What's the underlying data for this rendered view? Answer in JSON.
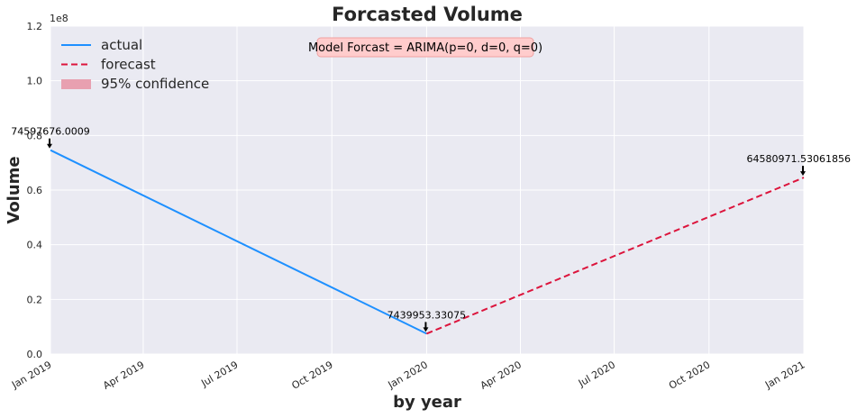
{
  "chart_data": {
    "type": "line",
    "title": "Forcasted Volume",
    "xlabel": "by year",
    "ylabel": "Volume",
    "y_offset_text": "1e8",
    "ylim": [
      0,
      1.2
    ],
    "xlim": [
      "2019-01-01",
      "2021-01-01"
    ],
    "x_ticks": [
      {
        "label": "Jan 2019",
        "date": "2019-01-01"
      },
      {
        "label": "Apr 2019",
        "date": "2019-04-01"
      },
      {
        "label": "Jul 2019",
        "date": "2019-07-01"
      },
      {
        "label": "Oct 2019",
        "date": "2019-10-01"
      },
      {
        "label": "Jan 2020",
        "date": "2020-01-01"
      },
      {
        "label": "Apr 2020",
        "date": "2020-04-01"
      },
      {
        "label": "Jul 2020",
        "date": "2020-07-01"
      },
      {
        "label": "Oct 2020",
        "date": "2020-10-01"
      },
      {
        "label": "Jan 2021",
        "date": "2021-01-01"
      }
    ],
    "y_ticks": [
      {
        "label": "0.0",
        "value": 0.0
      },
      {
        "label": "0.2",
        "value": 0.2
      },
      {
        "label": "0.4",
        "value": 0.4
      },
      {
        "label": "0.6",
        "value": 0.6
      },
      {
        "label": "0.8",
        "value": 0.8
      },
      {
        "label": "1.0",
        "value": 1.0
      },
      {
        "label": "1.2",
        "value": 1.2
      }
    ],
    "grid": true,
    "legend_position": "top-left",
    "series": [
      {
        "name": "actual",
        "style": "solid",
        "color": "#1e90ff",
        "points": [
          {
            "x": "2019-01-01",
            "y": 0.745976760009
          },
          {
            "x": "2020-01-01",
            "y": 0.0743995333075
          }
        ]
      },
      {
        "name": "forecast",
        "style": "dashed",
        "color": "#dc143c",
        "points": [
          {
            "x": "2020-01-01",
            "y": 0.0743995333075
          },
          {
            "x": "2021-01-01",
            "y": 0.6458097153061856
          }
        ]
      }
    ],
    "legend": [
      {
        "label": "actual",
        "kind": "solid",
        "color": "#1e90ff"
      },
      {
        "label": "forecast",
        "kind": "dashed",
        "color": "#dc143c"
      },
      {
        "label": "95% confidence",
        "kind": "patch",
        "color": "#e8a0b0"
      }
    ],
    "annotations": [
      {
        "text": "74597676.0009",
        "x": "2019-01-01",
        "y": 0.745976760009
      },
      {
        "text": "7439953.33075",
        "x": "2020-01-01",
        "y": 0.0743995333075
      },
      {
        "text": "64580971.53061856",
        "x": "2021-01-01",
        "y": 0.6458097153061856
      }
    ],
    "model_box": {
      "text": "Model Forcast = ARIMA(p=0, d=0, q=0)",
      "fill": "#ffcccc",
      "border": "#f0a0a0"
    },
    "colors": {
      "plot_background": "#eaeaf2",
      "grid": "#ffffff",
      "actual": "#1e90ff",
      "forecast": "#dc143c",
      "confidence": "#e8a0b0"
    }
  }
}
